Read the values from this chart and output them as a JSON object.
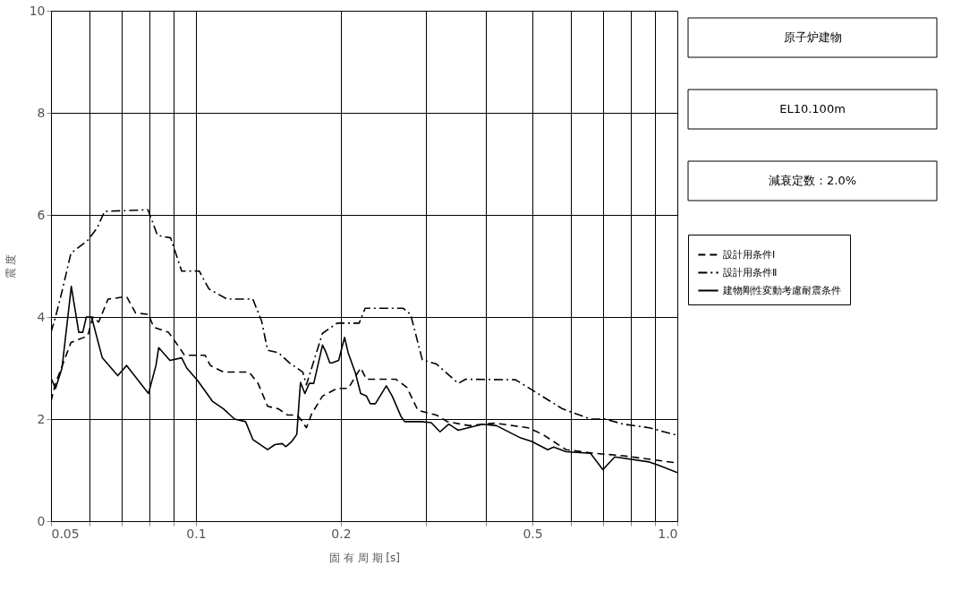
{
  "chart_data": {
    "type": "line",
    "xlabel": "固 有 周 期 [s]",
    "ylabel": "震 度",
    "log": "x",
    "grid": true,
    "legend": "right",
    "marker": "none",
    "xlim": [
      0.05,
      1.0
    ],
    "ylim": [
      0,
      10
    ],
    "yticks": [
      0,
      2,
      4,
      6,
      8,
      10
    ],
    "xticks": [
      0.05,
      {
        "value": 0.06,
        "label": null
      },
      {
        "value": 0.07,
        "label": null
      },
      {
        "value": 0.08,
        "label": null
      },
      {
        "value": 0.09,
        "label": null
      },
      0.1,
      0.2,
      {
        "value": 0.3,
        "label": null
      },
      {
        "value": 0.4,
        "label": null
      },
      0.5,
      {
        "value": 0.6,
        "label": null
      },
      {
        "value": 0.7,
        "label": null
      },
      {
        "value": 0.8,
        "label": null
      },
      {
        "value": 0.9,
        "label": null
      },
      {
        "value": 1.0,
        "label": "1.0"
      }
    ],
    "annotations": [
      "原子炉建物",
      "EL10.100m",
      "減衰定数：2.0%"
    ],
    "series": [
      {
        "name": "設計用条件Ⅰ",
        "color": "#000000",
        "line_style": "dashed",
        "x": [
          0.05,
          0.0511,
          0.0523,
          0.055,
          0.0596,
          0.0611,
          0.0628,
          0.0657,
          0.0718,
          0.0749,
          0.0797,
          0.0817,
          0.0877,
          0.0924,
          0.0947,
          0.1045,
          0.1071,
          0.1141,
          0.129,
          0.1346,
          0.1409,
          0.1484,
          0.1548,
          0.162,
          0.1649,
          0.1696,
          0.1739,
          0.1832,
          0.1965,
          0.2071,
          0.2199,
          0.2261,
          0.2602,
          0.2743,
          0.2892,
          0.3158,
          0.3329,
          0.3697,
          0.418,
          0.4895,
          0.525,
          0.5876,
          0.6714,
          0.7727,
          1.0
        ],
        "values": [
          2.35,
          2.7,
          2.95,
          3.5,
          3.63,
          4.0,
          3.9,
          4.35,
          4.4,
          4.08,
          4.05,
          3.8,
          3.7,
          3.4,
          3.25,
          3.25,
          3.05,
          2.92,
          2.92,
          2.7,
          2.25,
          2.2,
          2.08,
          2.08,
          2.0,
          1.83,
          2.1,
          2.45,
          2.6,
          2.6,
          3.0,
          2.78,
          2.78,
          2.62,
          2.17,
          2.08,
          1.95,
          1.87,
          1.92,
          1.83,
          1.7,
          1.4,
          1.33,
          1.28,
          1.14
        ]
      },
      {
        "name": "設計用条件Ⅱ",
        "color": "#000000",
        "line_style": "dashdot",
        "x": [
          0.05,
          0.0511,
          0.0527,
          0.055,
          0.0596,
          0.0624,
          0.0646,
          0.0795,
          0.0832,
          0.0886,
          0.0934,
          0.1016,
          0.1064,
          0.1161,
          0.1313,
          0.1369,
          0.1409,
          0.1484,
          0.1565,
          0.1667,
          0.1696,
          0.1832,
          0.1965,
          0.2183,
          0.2246,
          0.2695,
          0.2792,
          0.2953,
          0.3158,
          0.3507,
          0.3633,
          0.4613,
          0.4895,
          0.5774,
          0.66,
          0.7079,
          0.7727,
          0.874,
          1.0
        ],
        "values": [
          3.7,
          4.0,
          4.5,
          5.25,
          5.5,
          5.75,
          6.07,
          6.1,
          5.6,
          5.55,
          4.9,
          4.9,
          4.55,
          4.35,
          4.35,
          3.92,
          3.35,
          3.3,
          3.1,
          2.92,
          2.67,
          3.68,
          3.88,
          3.88,
          4.17,
          4.17,
          4.05,
          3.16,
          3.08,
          2.7,
          2.78,
          2.77,
          2.62,
          2.2,
          2.0,
          2.0,
          1.9,
          1.83,
          1.68
        ]
      },
      {
        "name": "建物剛性変動考慮耐震条件",
        "color": "#000000",
        "line_style": "solid",
        "x": [
          0.05,
          0.0511,
          0.0527,
          0.0551,
          0.0571,
          0.0582,
          0.0592,
          0.0607,
          0.0639,
          0.0688,
          0.0718,
          0.0797,
          0.0826,
          0.0837,
          0.0883,
          0.0934,
          0.0957,
          0.1009,
          0.1082,
          0.1141,
          0.1203,
          0.1268,
          0.1313,
          0.1409,
          0.1459,
          0.1511,
          0.1537,
          0.1581,
          0.162,
          0.1638,
          0.1649,
          0.1684,
          0.172,
          0.1757,
          0.1832,
          0.1864,
          0.1897,
          0.1917,
          0.1979,
          0.2036,
          0.2071,
          0.2145,
          0.2199,
          0.2261,
          0.2302,
          0.2359,
          0.2486,
          0.2557,
          0.2667,
          0.2715,
          0.2943,
          0.3081,
          0.3214,
          0.3352,
          0.3507,
          0.3938,
          0.421,
          0.4727,
          0.4983,
          0.538,
          0.5533,
          0.5876,
          0.66,
          0.7003,
          0.7412,
          0.874,
          0.911,
          1.0
        ],
        "values": [
          2.8,
          2.6,
          3.0,
          4.6,
          3.7,
          3.7,
          4.0,
          4.0,
          3.2,
          2.85,
          3.05,
          2.5,
          3.05,
          3.4,
          3.15,
          3.2,
          3.0,
          2.75,
          2.35,
          2.2,
          2.0,
          1.95,
          1.6,
          1.4,
          1.5,
          1.52,
          1.46,
          1.56,
          1.7,
          2.35,
          2.72,
          2.5,
          2.7,
          2.7,
          3.45,
          3.3,
          3.1,
          3.1,
          3.15,
          3.6,
          3.3,
          2.9,
          2.5,
          2.45,
          2.3,
          2.3,
          2.65,
          2.45,
          2.05,
          1.95,
          1.95,
          1.93,
          1.75,
          1.9,
          1.78,
          1.9,
          1.87,
          1.63,
          1.56,
          1.4,
          1.45,
          1.36,
          1.33,
          1.01,
          1.26,
          1.16,
          1.1,
          0.95
        ]
      }
    ]
  }
}
